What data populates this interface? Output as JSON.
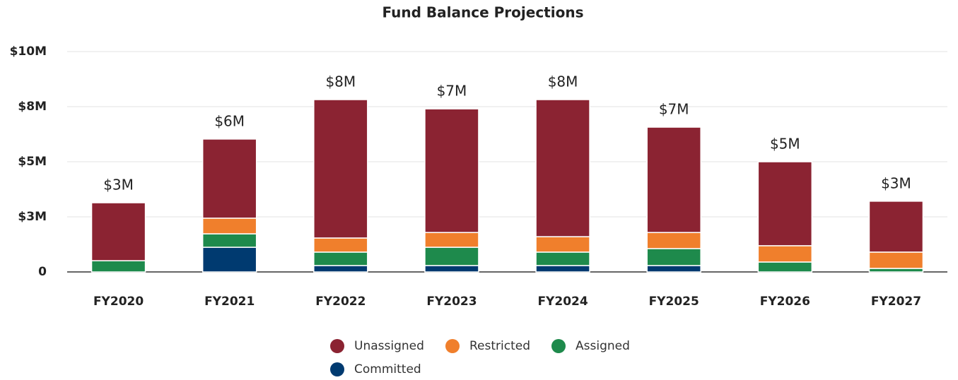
{
  "chart_data": {
    "type": "stacked_bar",
    "title": "Fund Balance Projections",
    "categories": [
      "FY2020",
      "FY2021",
      "FY2022",
      "FY2023",
      "FY2024",
      "FY2025",
      "FY2026",
      "FY2027"
    ],
    "series": [
      {
        "name": "Unassigned",
        "color": "#8b2332",
        "values": [
          2.63,
          3.59,
          6.28,
          5.61,
          6.22,
          4.78,
          3.81,
          2.31
        ]
      },
      {
        "name": "Restricted",
        "color": "#f07f2c",
        "values": [
          0,
          0.71,
          0.64,
          0.67,
          0.7,
          0.73,
          0.74,
          0.74
        ]
      },
      {
        "name": "Assigned",
        "color": "#1e8a4c",
        "values": [
          0.51,
          0.61,
          0.61,
          0.83,
          0.61,
          0.77,
          0.45,
          0.16
        ]
      },
      {
        "name": "Committed",
        "color": "#003a70",
        "values": [
          0,
          1.12,
          0.29,
          0.29,
          0.29,
          0.29,
          0,
          0
        ]
      }
    ],
    "totals": {
      "values": [
        3.14,
        6.03,
        7.82,
        7.4,
        7.82,
        6.57,
        5.0,
        3.21
      ],
      "value_labels": [
        "$3M",
        "$6M",
        "$8M",
        "$7M",
        "$8M",
        "$7M",
        "$5M",
        "$3M"
      ]
    },
    "ylim": [
      0,
      10
    ],
    "yticks": [
      0,
      {
        "value": 2.5,
        "label": "$3M"
      },
      {
        "value": 5,
        "label": "$5M"
      },
      {
        "value": 7.5,
        "label": "$8M"
      },
      {
        "value": 10,
        "label": "$10M"
      }
    ],
    "grid": true
  }
}
